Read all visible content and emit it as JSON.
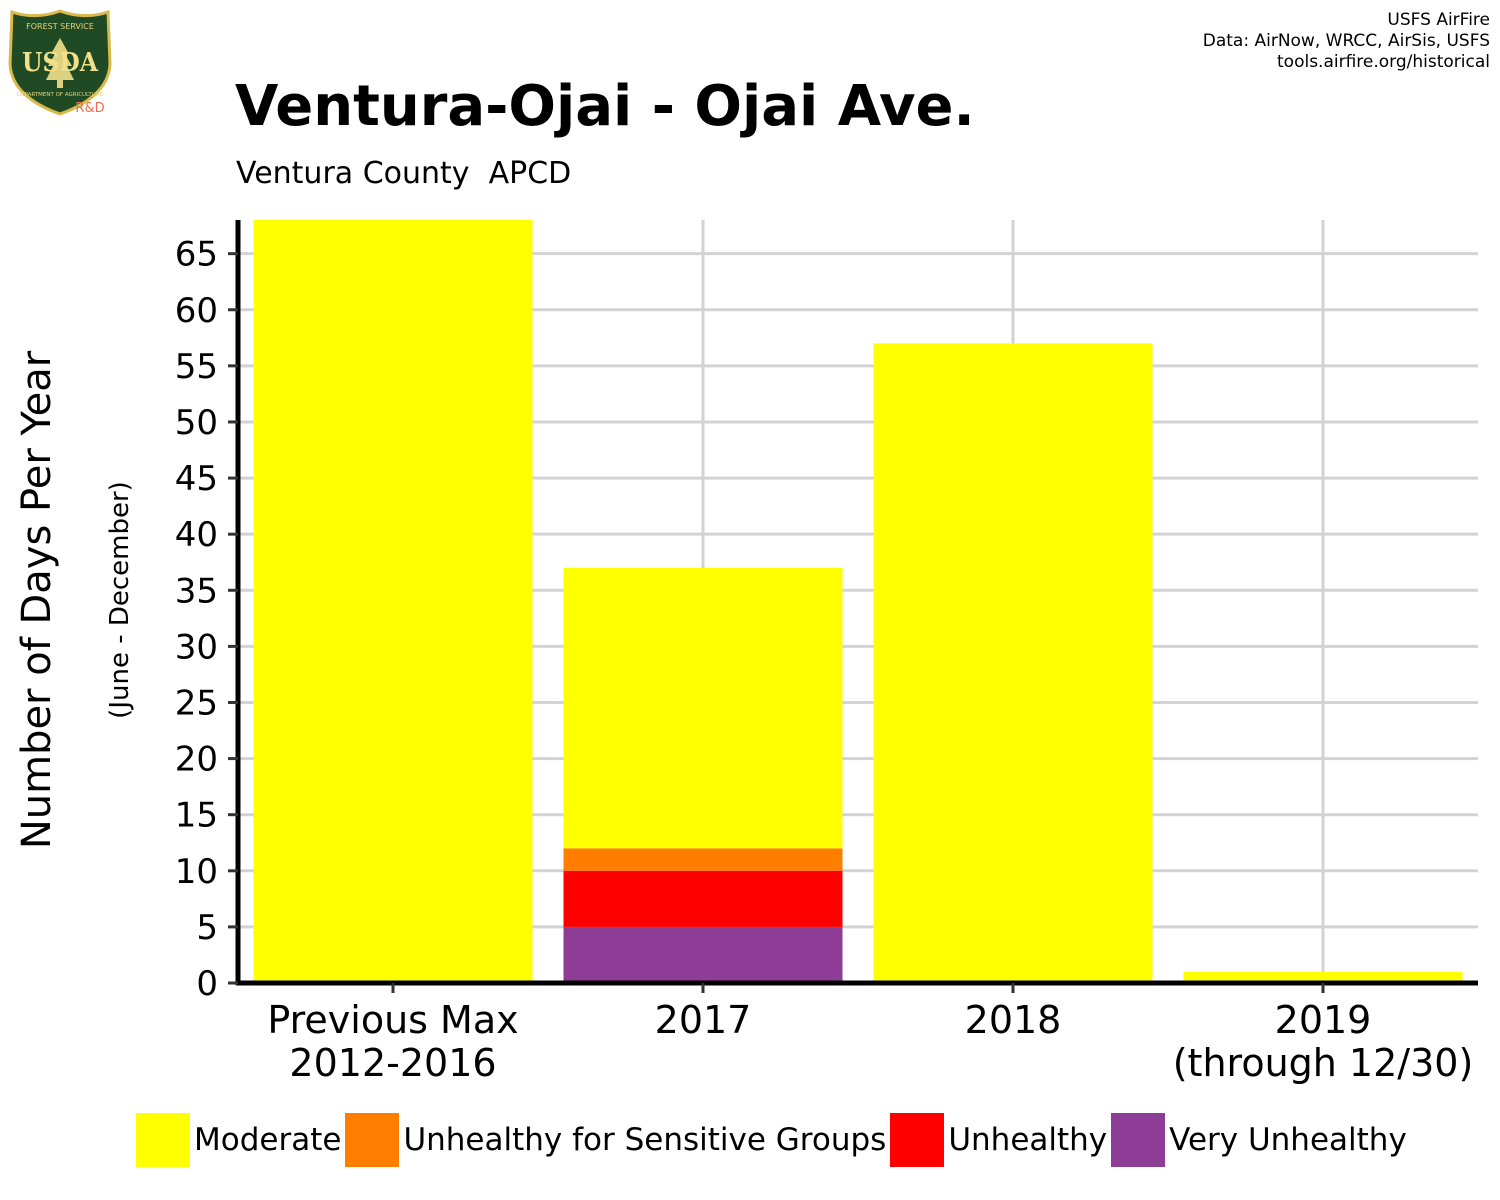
{
  "logo": {
    "top_text": "FOREST SERVICE",
    "letters": "USDA",
    "bottom_text": "DEPARTMENT OF AGRICULTURE",
    "badge": "R&D"
  },
  "credits": {
    "line1": "USFS AirFire",
    "line2": "Data: AirNow, WRCC, AirSis, USFS",
    "line3": "tools.airfire.org/historical"
  },
  "chart_data": {
    "type": "bar",
    "stacked": true,
    "title": "Ventura-Ojai - Ojai Ave.",
    "subtitle": "Ventura County  APCD",
    "ylabel": "Number of Days Per Year",
    "ylabel_sub": "(June - December)",
    "xlabel": "",
    "ylim": [
      0,
      68
    ],
    "yticks": [
      0,
      5,
      10,
      15,
      20,
      25,
      30,
      35,
      40,
      45,
      50,
      55,
      60,
      65
    ],
    "grid": true,
    "legend_position": "bottom",
    "categories": [
      [
        "Previous Max",
        "2012-2016"
      ],
      [
        "2017"
      ],
      [
        "2018"
      ],
      [
        "2019",
        "(through 12/30)"
      ]
    ],
    "series": [
      {
        "name": "Very Unhealthy",
        "color": "#8E3D96",
        "values": [
          0,
          5,
          0,
          0
        ]
      },
      {
        "name": "Unhealthy",
        "color": "#FF0000",
        "values": [
          0,
          5,
          0,
          0
        ]
      },
      {
        "name": "Unhealthy for Sensitive Groups",
        "color": "#FF7E00",
        "values": [
          0,
          2,
          0,
          0
        ]
      },
      {
        "name": "Moderate",
        "color": "#FFFF00",
        "values": [
          68,
          25,
          57,
          1
        ]
      }
    ],
    "legend_order": [
      "Moderate",
      "Unhealthy for Sensitive Groups",
      "Unhealthy",
      "Very Unhealthy"
    ]
  }
}
